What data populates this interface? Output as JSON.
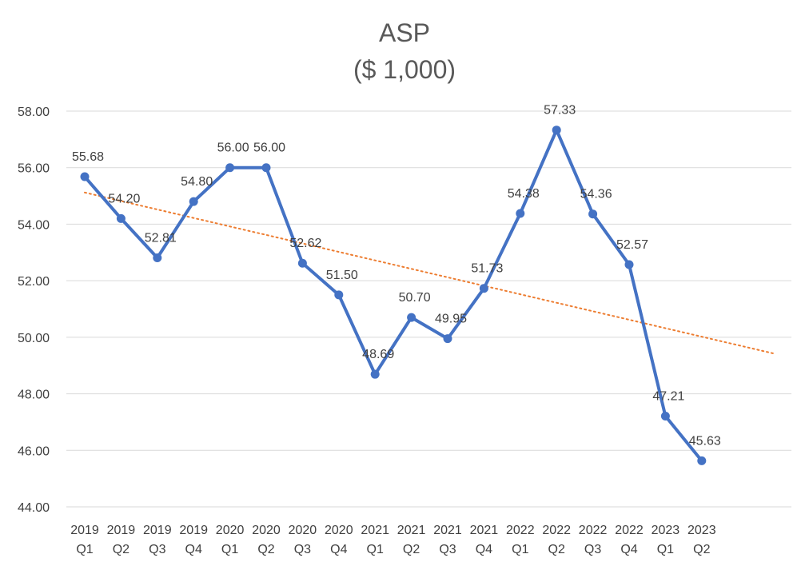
{
  "chart_data": {
    "type": "line",
    "title": "ASP",
    "subtitle": "($ 1,000)",
    "xlabel": "",
    "ylabel": "",
    "ylim": [
      44,
      58
    ],
    "yticks": [
      "44.00",
      "46.00",
      "48.00",
      "50.00",
      "52.00",
      "54.00",
      "56.00",
      "58.00"
    ],
    "grid": true,
    "legend": "none",
    "categories": [
      [
        "2019",
        "Q1"
      ],
      [
        "2019",
        "Q2"
      ],
      [
        "2019",
        "Q3"
      ],
      [
        "2019",
        "Q4"
      ],
      [
        "2020",
        "Q1"
      ],
      [
        "2020",
        "Q2"
      ],
      [
        "2020",
        "Q3"
      ],
      [
        "2020",
        "Q4"
      ],
      [
        "2021",
        "Q1"
      ],
      [
        "2021",
        "Q2"
      ],
      [
        "2021",
        "Q3"
      ],
      [
        "2021",
        "Q4"
      ],
      [
        "2022",
        "Q1"
      ],
      [
        "2022",
        "Q2"
      ],
      [
        "2022",
        "Q3"
      ],
      [
        "2022",
        "Q4"
      ],
      [
        "2023",
        "Q1"
      ],
      [
        "2023",
        "Q2"
      ]
    ],
    "series": [
      {
        "values": [
          55.68,
          54.2,
          52.81,
          54.8,
          56.0,
          56.0,
          52.62,
          51.5,
          48.69,
          50.7,
          49.95,
          51.73,
          54.38,
          57.33,
          54.36,
          52.57,
          47.21,
          45.63
        ],
        "labels": [
          "55.68",
          "54.20",
          "52.81",
          "54.80",
          "56.00",
          "56.00",
          "52.62",
          "51.50",
          "48.69",
          "50.70",
          "49.95",
          "51.73",
          "54.38",
          "57.33",
          "54.36",
          "52.57",
          "47.21",
          "45.63"
        ],
        "color": "#4472C4",
        "marker": "circle"
      }
    ],
    "trendline": {
      "type": "linear",
      "style": "dotted",
      "color": "#ED7D31",
      "start": {
        "x_index": 0,
        "y": 55.12
      },
      "end": {
        "x_index": 19,
        "y": 49.42
      }
    }
  }
}
